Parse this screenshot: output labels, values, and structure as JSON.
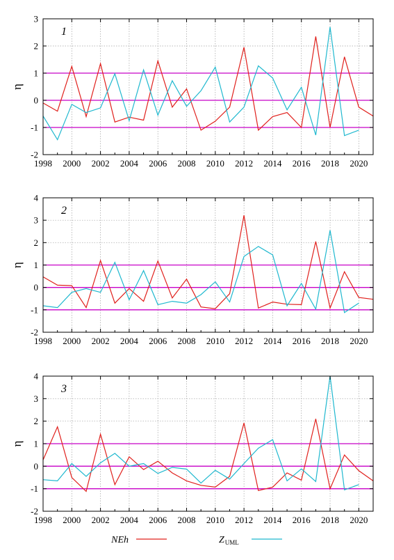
{
  "chart_data": [
    {
      "type": "line",
      "panel_label": "1",
      "ylabel": "η",
      "xlim": [
        1998,
        2021
      ],
      "ylim": [
        -2,
        3
      ],
      "x_ticks": [
        "1998",
        "2000",
        "2002",
        "2004",
        "2006",
        "2008",
        "2010",
        "2012",
        "2014",
        "2016",
        "2018",
        "2020"
      ],
      "y_ticks": [
        "-2",
        "-1",
        "0",
        "1",
        "2",
        "3"
      ],
      "reference_lines": [
        -1,
        0,
        1
      ],
      "grid": true,
      "series": [
        {
          "name": "NEh",
          "color": "#e0201c",
          "x": [
            1998,
            1999,
            2000,
            2001,
            2002,
            2003,
            2004,
            2005,
            2006,
            2007,
            2008,
            2009,
            2010,
            2011,
            2012,
            2013,
            2014,
            2015,
            2016,
            2017,
            2018,
            2019,
            2020,
            2021
          ],
          "values": [
            -0.1,
            -0.4,
            1.25,
            -0.6,
            1.35,
            -0.8,
            -0.62,
            -0.73,
            1.45,
            -0.25,
            0.42,
            -1.1,
            -0.77,
            -0.25,
            1.95,
            -1.1,
            -0.6,
            -0.45,
            -1.0,
            2.35,
            -1.0,
            1.6,
            -0.25,
            -0.58
          ]
        },
        {
          "name": "Z_UML",
          "color": "#1fb8cf",
          "x": [
            1998,
            1999,
            2000,
            2001,
            2002,
            2003,
            2004,
            2005,
            2006,
            2007,
            2008,
            2009,
            2010,
            2011,
            2012,
            2013,
            2014,
            2015,
            2016,
            2017,
            2018,
            2019,
            2020
          ],
          "values": [
            -0.58,
            -1.45,
            -0.15,
            -0.45,
            -0.28,
            0.98,
            -0.75,
            1.12,
            -0.55,
            0.72,
            -0.22,
            0.35,
            1.22,
            -0.8,
            -0.25,
            1.27,
            0.82,
            -0.35,
            0.48,
            -1.28,
            2.7,
            -1.3,
            -1.1
          ]
        }
      ]
    },
    {
      "type": "line",
      "panel_label": "2",
      "ylabel": "η",
      "xlim": [
        1998,
        2021
      ],
      "ylim": [
        -2,
        4
      ],
      "x_ticks": [
        "1998",
        "2000",
        "2002",
        "2004",
        "2006",
        "2008",
        "2010",
        "2012",
        "2014",
        "2016",
        "2018",
        "2020"
      ],
      "y_ticks": [
        "-2",
        "-1",
        "0",
        "1",
        "2",
        "3",
        "4"
      ],
      "reference_lines": [
        -1,
        0,
        1
      ],
      "grid": true,
      "series": [
        {
          "name": "NEh",
          "color": "#e0201c",
          "x": [
            1998,
            1999,
            2000,
            2001,
            2002,
            2003,
            2004,
            2005,
            2006,
            2007,
            2008,
            2009,
            2010,
            2011,
            2012,
            2013,
            2014,
            2015,
            2016,
            2017,
            2018,
            2019,
            2020,
            2021
          ],
          "values": [
            0.47,
            0.1,
            0.08,
            -0.9,
            1.2,
            -0.7,
            -0.05,
            -0.62,
            1.18,
            -0.47,
            0.37,
            -0.87,
            -0.95,
            -0.28,
            3.22,
            -0.92,
            -0.65,
            -0.75,
            -0.77,
            2.05,
            -0.92,
            0.7,
            -0.45,
            -0.53
          ]
        },
        {
          "name": "Z_UML",
          "color": "#1fb8cf",
          "x": [
            1998,
            1999,
            2000,
            2001,
            2002,
            2003,
            2004,
            2005,
            2006,
            2007,
            2008,
            2009,
            2010,
            2011,
            2012,
            2013,
            2014,
            2015,
            2016,
            2017,
            2018,
            2019,
            2020
          ],
          "values": [
            -0.82,
            -0.9,
            -0.22,
            -0.05,
            -0.22,
            1.12,
            -0.55,
            0.75,
            -0.77,
            -0.62,
            -0.7,
            -0.32,
            0.25,
            -0.65,
            1.38,
            1.83,
            1.45,
            -0.82,
            0.18,
            -0.97,
            2.55,
            -1.12,
            -0.7
          ]
        }
      ]
    },
    {
      "type": "line",
      "panel_label": "3",
      "ylabel": "η",
      "xlim": [
        1998,
        2021
      ],
      "ylim": [
        -2,
        4
      ],
      "x_ticks": [
        "1998",
        "2000",
        "2002",
        "2004",
        "2006",
        "2008",
        "2010",
        "2012",
        "2014",
        "2016",
        "2018",
        "2020"
      ],
      "y_ticks": [
        "-2",
        "-1",
        "0",
        "1",
        "2",
        "3",
        "4"
      ],
      "reference_lines": [
        -1,
        0,
        1
      ],
      "grid": true,
      "series": [
        {
          "name": "NEh",
          "color": "#e0201c",
          "x": [
            1998,
            1999,
            2000,
            2001,
            2002,
            2003,
            2004,
            2005,
            2006,
            2007,
            2008,
            2009,
            2010,
            2011,
            2012,
            2013,
            2014,
            2015,
            2016,
            2017,
            2018,
            2019,
            2020,
            2021
          ],
          "values": [
            0.28,
            1.75,
            -0.5,
            -1.12,
            1.42,
            -0.82,
            0.42,
            -0.15,
            0.22,
            -0.3,
            -0.65,
            -0.85,
            -0.93,
            -0.45,
            1.92,
            -1.08,
            -0.93,
            -0.3,
            -0.62,
            2.1,
            -1.0,
            0.5,
            -0.2,
            -0.65
          ]
        },
        {
          "name": "Z_UML",
          "color": "#1fb8cf",
          "x": [
            1998,
            1999,
            2000,
            2001,
            2002,
            2003,
            2004,
            2005,
            2006,
            2007,
            2008,
            2009,
            2010,
            2011,
            2012,
            2013,
            2014,
            2015,
            2016,
            2017,
            2018,
            2019,
            2020
          ],
          "values": [
            -0.6,
            -0.65,
            0.12,
            -0.45,
            0.15,
            0.57,
            0.0,
            0.12,
            -0.32,
            -0.05,
            -0.13,
            -0.75,
            -0.18,
            -0.57,
            0.12,
            0.8,
            1.18,
            -0.65,
            -0.12,
            -0.68,
            4.0,
            -1.05,
            -0.82
          ]
        }
      ]
    }
  ],
  "legend": {
    "placement": "bottom-center",
    "items": [
      {
        "label": "NEh",
        "sub": "",
        "color": "#e0201c"
      },
      {
        "label": "Z",
        "sub": "UML",
        "color": "#1fb8cf"
      }
    ]
  },
  "colors": {
    "reference_line": "#c800c8",
    "grid": "#a0a0a0",
    "axis": "#000000"
  }
}
